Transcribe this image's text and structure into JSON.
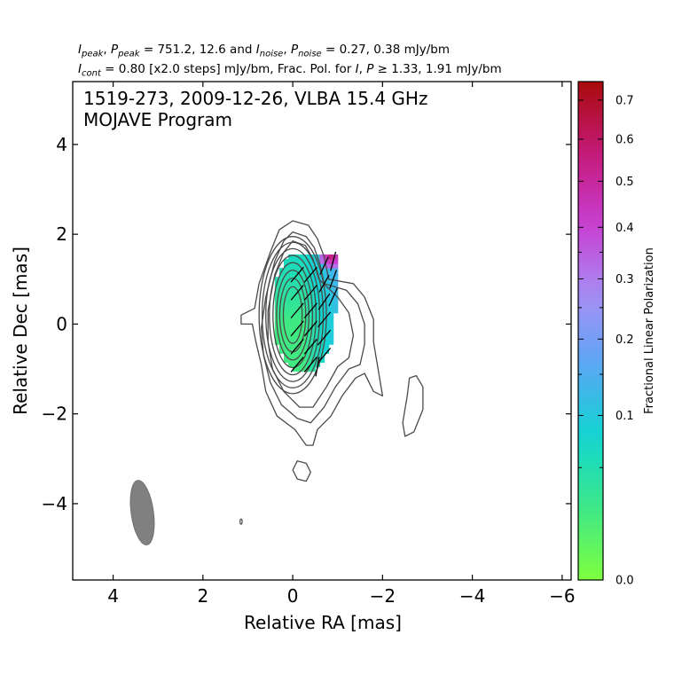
{
  "header": {
    "line1": {
      "i_peak": "I",
      "i_peak_sub": "peak",
      "sep1": ", ",
      "p_peak": "P",
      "p_peak_sub": "peak",
      "peak_values": " = 751.2, 12.6 and ",
      "i_noise": "I",
      "i_noise_sub": "noise",
      "sep2": ", ",
      "p_noise": "P",
      "p_noise_sub": "noise",
      "noise_values": " = 0.27, 0.38 mJy/bm"
    },
    "line2": {
      "i_cont": "I",
      "i_cont_sub": "cont",
      "cont_text": " = 0.80 [x2.0 steps] mJy/bm, Frac. Pol. for ",
      "i_sym": "I",
      "sep": ", ",
      "p_sym": "P",
      "threshold": " ≥ 1.33, 1.91 mJy/bm"
    }
  },
  "chart_data": {
    "type": "contour",
    "title": "1519-273, 2009-12-26, VLBA 15.4 GHz",
    "subtitle": "MOJAVE Program",
    "xlabel": "Relative RA [mas]",
    "ylabel": "Relative Dec [mas]",
    "xlim": [
      4.9,
      -6.2
    ],
    "ylim": [
      -5.7,
      5.4
    ],
    "x_ticks": [
      4,
      2,
      0,
      -2,
      -4,
      -6
    ],
    "x_tick_labels": [
      "4",
      "2",
      "0",
      "−2",
      "−4",
      "−6"
    ],
    "y_ticks": [
      4,
      2,
      0,
      -2,
      -4
    ],
    "y_tick_labels": [
      "4",
      "2",
      "0",
      "−2",
      "−4"
    ],
    "i_peak_mJy_per_beam": 751.2,
    "p_peak_mJy_per_beam": 12.6,
    "i_noise_mJy_per_beam": 0.27,
    "p_noise_mJy_per_beam": 0.38,
    "lowest_contour_mJy_per_beam": 0.8,
    "contour_step_factor": 2.0,
    "contour_color": "#4a4a4a",
    "core_contours": {
      "center": [
        0.0,
        0.2
      ],
      "levels": [
        {
          "a": 0.75,
          "b": 1.75
        },
        {
          "a": 0.68,
          "b": 1.62
        },
        {
          "a": 0.6,
          "b": 1.48
        },
        {
          "a": 0.52,
          "b": 1.33
        },
        {
          "a": 0.44,
          "b": 1.17
        },
        {
          "a": 0.36,
          "b": 1.0
        },
        {
          "a": 0.29,
          "b": 0.82
        },
        {
          "a": 0.21,
          "b": 0.63
        }
      ]
    },
    "outer_contours": [
      [
        [
          0.0,
          2.3
        ],
        [
          -0.35,
          2.2
        ],
        [
          -0.55,
          1.9
        ],
        [
          -0.7,
          1.5
        ],
        [
          -0.8,
          1.0
        ],
        [
          -1.35,
          0.9
        ],
        [
          -1.6,
          0.6
        ],
        [
          -1.8,
          0.1
        ],
        [
          -1.8,
          -0.4
        ],
        [
          -1.9,
          -1.0
        ],
        [
          -2.0,
          -1.6
        ],
        [
          -1.8,
          -1.5
        ],
        [
          -1.6,
          -1.1
        ],
        [
          -1.4,
          -1.2
        ],
        [
          -1.1,
          -1.6
        ],
        [
          -0.85,
          -2.05
        ],
        [
          -0.55,
          -2.35
        ],
        [
          -0.45,
          -2.7
        ],
        [
          -0.3,
          -2.7
        ],
        [
          -0.05,
          -2.35
        ],
        [
          0.35,
          -2.05
        ],
        [
          0.6,
          -1.5
        ],
        [
          0.7,
          -0.9
        ],
        [
          0.82,
          -0.4
        ],
        [
          0.9,
          0.0
        ],
        [
          1.15,
          0.0
        ],
        [
          1.15,
          0.2
        ],
        [
          0.85,
          0.35
        ],
        [
          0.75,
          0.9
        ],
        [
          0.5,
          1.6
        ],
        [
          0.3,
          2.1
        ],
        [
          0.0,
          2.3
        ]
      ],
      [
        [
          0.0,
          2.05
        ],
        [
          -0.3,
          1.95
        ],
        [
          -0.48,
          1.7
        ],
        [
          -0.6,
          1.35
        ],
        [
          -0.7,
          0.9
        ],
        [
          -1.2,
          0.75
        ],
        [
          -1.45,
          0.45
        ],
        [
          -1.6,
          0.0
        ],
        [
          -1.6,
          -0.45
        ],
        [
          -1.5,
          -0.9
        ],
        [
          -1.25,
          -1.0
        ],
        [
          -0.95,
          -1.4
        ],
        [
          -0.7,
          -1.85
        ],
        [
          -0.4,
          -2.2
        ],
        [
          -0.1,
          -2.1
        ],
        [
          0.25,
          -1.8
        ],
        [
          0.5,
          -1.3
        ],
        [
          0.65,
          -0.7
        ],
        [
          0.7,
          -0.1
        ],
        [
          0.6,
          0.6
        ],
        [
          0.4,
          1.4
        ],
        [
          0.2,
          1.85
        ],
        [
          0.0,
          2.05
        ]
      ],
      [
        [
          0.0,
          1.85
        ],
        [
          -0.28,
          1.75
        ],
        [
          -0.45,
          1.45
        ],
        [
          -0.58,
          1.0
        ],
        [
          -1.0,
          0.6
        ],
        [
          -1.25,
          0.25
        ],
        [
          -1.35,
          -0.25
        ],
        [
          -1.25,
          -0.75
        ],
        [
          -1.0,
          -0.95
        ],
        [
          -0.75,
          -1.4
        ],
        [
          -0.45,
          -1.85
        ],
        [
          -0.15,
          -1.85
        ],
        [
          0.2,
          -1.5
        ],
        [
          0.45,
          -1.0
        ],
        [
          0.55,
          -0.4
        ],
        [
          0.55,
          0.3
        ],
        [
          0.4,
          1.1
        ],
        [
          0.2,
          1.6
        ],
        [
          0.0,
          1.85
        ]
      ]
    ],
    "secondary_component": [
      [
        -2.6,
        -1.2
      ],
      [
        -2.75,
        -1.15
      ],
      [
        -2.9,
        -1.4
      ],
      [
        -2.9,
        -1.9
      ],
      [
        -2.7,
        -2.4
      ],
      [
        -2.5,
        -2.5
      ],
      [
        -2.45,
        -2.2
      ],
      [
        -2.55,
        -1.6
      ],
      [
        -2.6,
        -1.2
      ]
    ],
    "lower_left_feature": {
      "x": 0.0,
      "y": -3.05,
      "type": "contour",
      "data": [
        [
          -0.1,
          -3.05
        ],
        [
          -0.3,
          -3.1
        ],
        [
          -0.4,
          -3.3
        ],
        [
          -0.3,
          -3.5
        ],
        [
          -0.1,
          -3.45
        ],
        [
          0.0,
          -3.25
        ],
        [
          -0.1,
          -3.05
        ]
      ]
    },
    "small_contour": {
      "x": 1.15,
      "y": -4.4
    },
    "beam": {
      "x": 3.35,
      "y": -4.2,
      "bmaj_mas": 1.45,
      "bmin_mas": 0.5,
      "pa_deg": -8,
      "color": "#808080"
    },
    "fractional_polarization_pixels": {
      "step_mas": 0.1,
      "region": "core",
      "min": 0.0,
      "max": 0.75,
      "hotspot": {
        "x": -0.8,
        "y": 1.45,
        "value": 0.55
      }
    },
    "evpa_ticks": [
      {
        "x": -0.1,
        "y": -0.9,
        "angle": 40
      },
      {
        "x": -0.1,
        "y": -0.5,
        "angle": 40
      },
      {
        "x": -0.1,
        "y": -0.1,
        "angle": 40
      },
      {
        "x": -0.1,
        "y": 0.3,
        "angle": 40
      },
      {
        "x": -0.1,
        "y": 0.7,
        "angle": 40
      },
      {
        "x": -0.1,
        "y": 1.1,
        "angle": 40
      },
      {
        "x": -0.4,
        "y": -0.9,
        "angle": 40
      },
      {
        "x": -0.4,
        "y": -0.5,
        "angle": 40
      },
      {
        "x": -0.4,
        "y": -0.1,
        "angle": 40
      },
      {
        "x": -0.4,
        "y": 0.3,
        "angle": 40
      },
      {
        "x": -0.4,
        "y": 0.7,
        "angle": 40
      },
      {
        "x": -0.4,
        "y": 1.1,
        "angle": 40
      },
      {
        "x": -0.7,
        "y": -0.7,
        "angle": 40
      },
      {
        "x": -0.7,
        "y": -0.3,
        "angle": 40
      },
      {
        "x": -0.7,
        "y": 0.1,
        "angle": 40
      },
      {
        "x": -0.7,
        "y": 0.5,
        "angle": 35
      },
      {
        "x": -0.7,
        "y": 0.9,
        "angle": 30
      },
      {
        "x": -0.7,
        "y": 1.3,
        "angle": 25
      },
      {
        "x": -0.9,
        "y": 0.6,
        "angle": 25
      },
      {
        "x": -0.9,
        "y": 1.0,
        "angle": 20
      },
      {
        "x": -0.9,
        "y": 1.4,
        "angle": 15
      },
      {
        "x": -0.55,
        "y": -0.95,
        "angle": 10
      }
    ],
    "colorbar": {
      "label": "Fractional Linear Polarization",
      "range": [
        0.0,
        0.75
      ],
      "tick_values": [
        0.0,
        0.1,
        0.2,
        0.3,
        0.4,
        0.5,
        0.6,
        0.7
      ],
      "tick_labels": [
        "0.0",
        "0.1",
        "0.2",
        "0.3",
        "0.4",
        "0.5",
        "0.6",
        "0.7"
      ],
      "minor_ticks": [
        0.05,
        0.15,
        0.25,
        0.35
      ],
      "colors": [
        "#7fff3f",
        "#3ee886",
        "#10d6d0",
        "#58a8f5",
        "#a78ef5",
        "#c83ed1",
        "#c41a79",
        "#a90a0a"
      ]
    }
  }
}
